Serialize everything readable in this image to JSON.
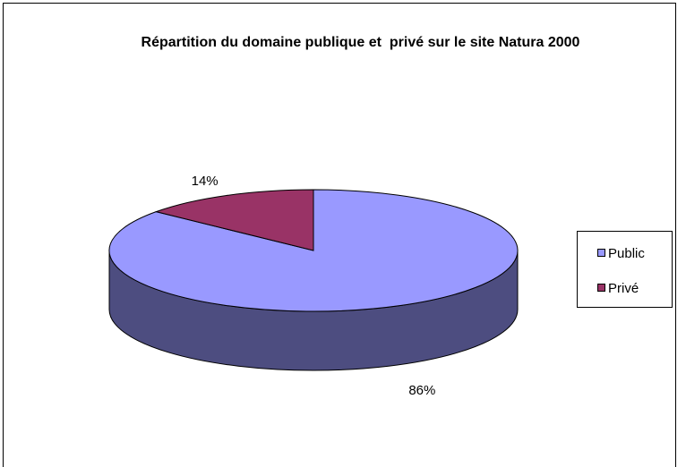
{
  "chart_data": {
    "type": "pie3d",
    "title": "Répartition du domaine publique et  privé sur le site Natura 2000",
    "series": [
      {
        "name": "Public",
        "color": "#9999ff",
        "values": [
          86
        ],
        "value_labels": [
          "86%"
        ]
      },
      {
        "name": "Privé",
        "color": "#993366",
        "values": [
          14
        ],
        "value_labels": [
          "14%"
        ]
      }
    ],
    "legend": "right"
  }
}
